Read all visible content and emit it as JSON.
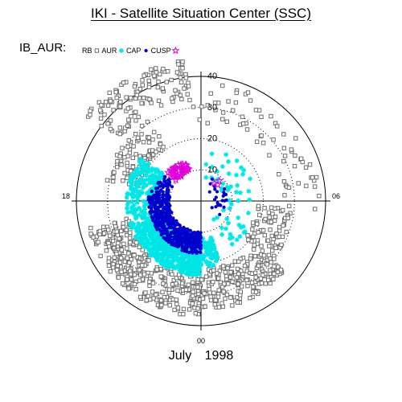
{
  "header": {
    "title": "IKI - Satellite Situation Center (SSC)"
  },
  "footer": {
    "caption": "July   1998"
  },
  "chart_data": {
    "type": "scatter",
    "projection": "polar (magnetic local time vs colatitude)",
    "panel_label": "IB_AUR:",
    "legend": {
      "placement": "top-left",
      "entries": [
        {
          "label": "RB",
          "marker": "none",
          "color": "#000000"
        },
        {
          "label": "AUR",
          "marker": "square-open",
          "color": "#6e6e6e"
        },
        {
          "label": "CAP",
          "marker": "asterisk",
          "color": "#00e5e5"
        },
        {
          "label": "CUSP",
          "marker": "dot",
          "color": "#0000cc"
        },
        {
          "label": "",
          "marker": "star-open",
          "color": "#e000d8"
        }
      ]
    },
    "angular_axis": {
      "unit": "MLT hours",
      "tick_labels": [
        {
          "text": "18",
          "mlt": 18
        },
        {
          "text": "06",
          "mlt": 6
        },
        {
          "text": "00",
          "mlt": 0
        }
      ]
    },
    "radial_axis": {
      "unit": "degrees colatitude",
      "tick_labels": [
        "10",
        "20",
        "30",
        "40"
      ],
      "rings": [
        10,
        20,
        30
      ],
      "outer_edge": 40
    },
    "series": [
      {
        "name": "AUR",
        "color": "#6e6e6e",
        "marker": "square-open",
        "regions": [
          {
            "mlt": [
              12.4,
              15.6
            ],
            "colat": [
              33,
              46
            ],
            "count": 130
          },
          {
            "mlt": [
              14.2,
              17.2
            ],
            "colat": [
              20,
              31
            ],
            "count": 90
          },
          {
            "mlt": [
              18.9,
              24.0
            ],
            "colat": [
              24,
              37
            ],
            "count": 330
          },
          {
            "mlt": [
              0.0,
              3.3
            ],
            "colat": [
              22,
              35
            ],
            "count": 200
          },
          {
            "mlt": [
              3.3,
              5.7
            ],
            "colat": [
              18,
              30
            ],
            "count": 85
          },
          {
            "mlt": [
              9.0,
              12.6
            ],
            "colat": [
              25,
              38
            ],
            "count": 35
          },
          {
            "mlt": [
              5.4,
              9.2
            ],
            "colat": [
              26,
              38
            ],
            "count": 35
          }
        ]
      },
      {
        "name": "CAP",
        "color": "#00e5e5",
        "marker": "asterisk",
        "regions": [
          {
            "mlt": [
              15.6,
              19.4
            ],
            "colat": [
              14,
              24
            ],
            "count": 220
          },
          {
            "mlt": [
              19.4,
              24.0
            ],
            "colat": [
              12,
              24
            ],
            "count": 620
          },
          {
            "mlt": [
              0.0,
              1.1
            ],
            "colat": [
              12,
              21
            ],
            "count": 60
          },
          {
            "mlt": [
              2.0,
              11.5
            ],
            "colat": [
              7,
              18
            ],
            "count": 55
          }
        ]
      },
      {
        "name": "CUSP",
        "color": "#0000cc",
        "marker": "dot",
        "regions": [
          {
            "mlt": [
              17.2,
              24.0
            ],
            "colat": [
              10,
              17
            ],
            "count": 560
          },
          {
            "mlt": [
              15.6,
              17.2
            ],
            "colat": [
              10,
              15
            ],
            "count": 40
          },
          {
            "mlt": [
              3.5,
              10.5
            ],
            "colat": [
              4,
              9
            ],
            "count": 24
          }
        ]
      },
      {
        "name": "",
        "color": "#e000d8",
        "marker": "star-open",
        "regions": [
          {
            "mlt": [
              13.4,
              15.4
            ],
            "colat": [
              10,
              14
            ],
            "count": 42
          },
          {
            "mlt": [
              8.7,
              10.2
            ],
            "colat": [
              6,
              9
            ],
            "count": 3
          }
        ]
      }
    ]
  }
}
